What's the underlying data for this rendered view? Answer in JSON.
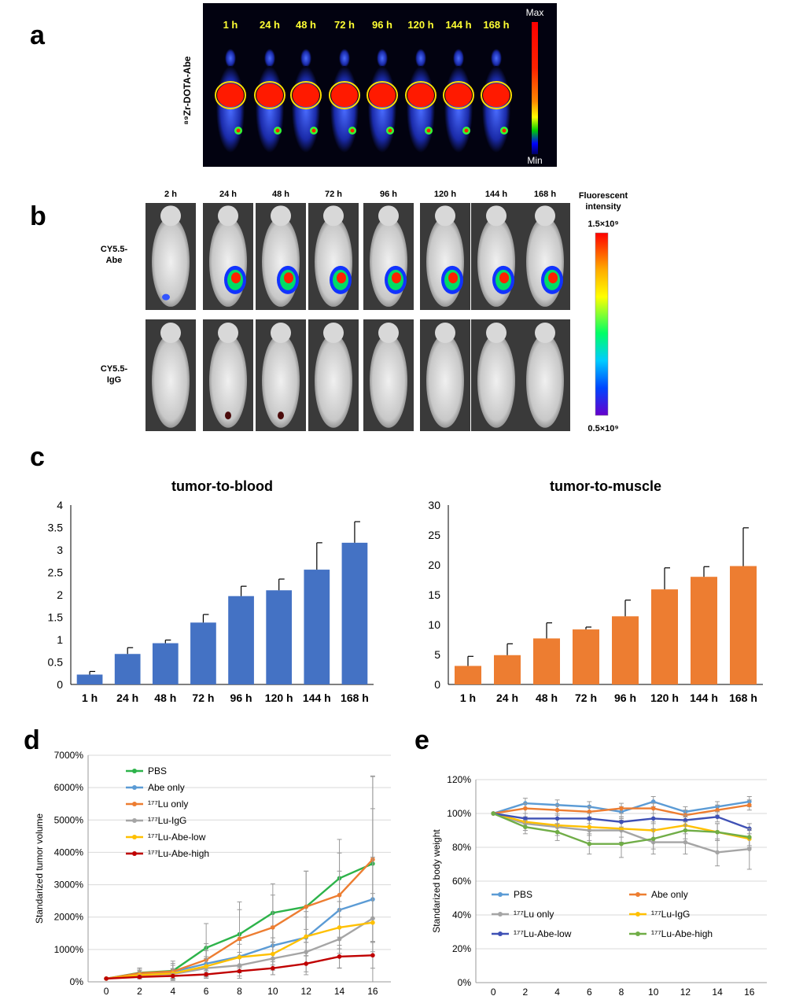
{
  "panels": {
    "a": "a",
    "b": "b",
    "c": "c",
    "d": "d",
    "e": "e"
  },
  "panel_a": {
    "side_label": "⁸⁹Zr-DOTA-Abe",
    "times": [
      "1 h",
      "24 h",
      "48 h",
      "72 h",
      "96 h",
      "120 h",
      "144 h",
      "168 h"
    ],
    "scale_max": "Max",
    "scale_min": "Min"
  },
  "panel_b": {
    "times": [
      "2 h",
      "24 h",
      "48 h",
      "72 h",
      "96 h",
      "120 h",
      "144 h",
      "168 h"
    ],
    "row1_label": [
      "CY5.5-",
      "Abe"
    ],
    "row2_label": [
      "CY5.5-",
      "IgG"
    ],
    "scale_title": [
      "Fluorescent",
      "intensity"
    ],
    "scale_max": "1.5×10⁹",
    "scale_min": "0.5×10⁹"
  },
  "chart_data": [
    {
      "id": "c-left",
      "type": "bar",
      "title": "tumor-to-blood",
      "categories": [
        "1 h",
        "24 h",
        "48 h",
        "72 h",
        "96 h",
        "120 h",
        "144 h",
        "168 h"
      ],
      "values": [
        0.22,
        0.68,
        0.92,
        1.38,
        1.97,
        2.1,
        2.56,
        3.16
      ],
      "errors": [
        0.07,
        0.14,
        0.07,
        0.18,
        0.22,
        0.25,
        0.6,
        0.47
      ],
      "ylim": [
        0,
        4
      ],
      "yticks": [
        "0",
        "0.5",
        "1",
        "1.5",
        "2",
        "2.5",
        "3",
        "3.5",
        "4"
      ],
      "color": "#4472C4"
    },
    {
      "id": "c-right",
      "type": "bar",
      "title": "tumor-to-muscle",
      "categories": [
        "1 h",
        "24 h",
        "48 h",
        "72 h",
        "96 h",
        "120 h",
        "144 h",
        "168 h"
      ],
      "values": [
        3.1,
        4.9,
        7.7,
        9.2,
        11.4,
        15.9,
        18.0,
        19.8
      ],
      "errors": [
        1.6,
        1.9,
        2.6,
        0.4,
        2.7,
        3.6,
        1.7,
        6.4
      ],
      "ylim": [
        0,
        30
      ],
      "yticks": [
        "0",
        "5",
        "10",
        "15",
        "20",
        "25",
        "30"
      ],
      "color": "#ED7D31"
    },
    {
      "id": "d",
      "type": "line",
      "ylabel": "Standarized tumor volume",
      "x": [
        0,
        2,
        4,
        6,
        8,
        10,
        12,
        14,
        16
      ],
      "ylim": [
        0,
        7000
      ],
      "yticks": [
        "0%",
        "1000%",
        "2000%",
        "3000%",
        "4000%",
        "5000%",
        "6000%",
        "7000%"
      ],
      "legend_position": "top-left",
      "series": [
        {
          "name": "PBS",
          "color": "#2DB34A",
          "values": [
            100,
            280,
            340,
            1050,
            1470,
            2130,
            2320,
            3200,
            3650
          ],
          "errors": [
            0,
            150,
            300,
            750,
            1000,
            900,
            1100,
            1200,
            1700
          ]
        },
        {
          "name": "Abe only",
          "color": "#5B9BD5",
          "values": [
            100,
            250,
            310,
            560,
            780,
            1120,
            1370,
            2220,
            2550
          ],
          "errors": [
            0,
            100,
            200,
            400,
            500,
            600,
            800,
            1200,
            1300
          ]
        },
        {
          "name": "¹⁷⁷Lu only",
          "color": "#ED7D31",
          "values": [
            100,
            270,
            320,
            680,
            1330,
            1680,
            2320,
            2680,
            3780
          ],
          "errors": [
            0,
            120,
            250,
            500,
            900,
            1000,
            1100,
            1300,
            2560
          ]
        },
        {
          "name": "¹⁷⁷Lu-IgG",
          "color": "#A5A5A5",
          "values": [
            100,
            200,
            240,
            420,
            510,
            720,
            920,
            1320,
            1960
          ],
          "errors": [
            0,
            100,
            150,
            300,
            400,
            500,
            700,
            900,
            4400
          ]
        },
        {
          "name": "¹⁷⁷Lu-Abe-low",
          "color": "#FFC000",
          "values": [
            100,
            210,
            260,
            480,
            760,
            860,
            1400,
            1680,
            1830
          ],
          "errors": [
            0,
            100,
            150,
            300,
            400,
            500,
            600,
            800,
            900
          ]
        },
        {
          "name": "¹⁷⁷Lu-Abe-high",
          "color": "#C00000",
          "values": [
            100,
            150,
            180,
            230,
            330,
            420,
            560,
            780,
            820
          ],
          "errors": [
            0,
            60,
            80,
            120,
            150,
            200,
            250,
            350,
            400
          ]
        }
      ]
    },
    {
      "id": "e",
      "type": "line",
      "ylabel": "Standarized body weight",
      "x": [
        0,
        2,
        4,
        6,
        8,
        10,
        12,
        14,
        16
      ],
      "ylim": [
        0,
        120
      ],
      "yticks": [
        "0%",
        "20%",
        "40%",
        "60%",
        "80%",
        "100%",
        "120%"
      ],
      "legend_position": "bottom",
      "series": [
        {
          "name": "PBS",
          "color": "#5B9BD5",
          "values": [
            100,
            106,
            105,
            104,
            101,
            107,
            101,
            104,
            107
          ],
          "errors": [
            0,
            3,
            3,
            3,
            3,
            3,
            3,
            3,
            3
          ]
        },
        {
          "name": "Abe only",
          "color": "#ED7D31",
          "values": [
            100,
            103,
            102,
            101,
            103,
            103,
            99,
            102,
            105
          ],
          "errors": [
            0,
            3,
            3,
            3,
            3,
            3,
            3,
            3,
            3
          ]
        },
        {
          "name": "¹⁷⁷Lu only",
          "color": "#A5A5A5",
          "values": [
            100,
            94,
            92,
            90,
            90,
            83,
            83,
            77,
            79
          ],
          "errors": [
            0,
            4,
            5,
            6,
            7,
            7,
            7,
            8,
            12
          ]
        },
        {
          "name": "¹⁷⁷Lu-IgG",
          "color": "#FFC000",
          "values": [
            100,
            95,
            93,
            92,
            91,
            90,
            93,
            89,
            85
          ],
          "errors": [
            0,
            3,
            4,
            5,
            5,
            5,
            5,
            5,
            5
          ]
        },
        {
          "name": "¹⁷⁷Lu-Abe-low",
          "color": "#3F51B5",
          "values": [
            100,
            97,
            97,
            97,
            95,
            97,
            96,
            98,
            91
          ],
          "errors": [
            0,
            3,
            3,
            3,
            3,
            3,
            3,
            3,
            3
          ]
        },
        {
          "name": "¹⁷⁷Lu-Abe-high",
          "color": "#70AD47",
          "values": [
            100,
            92,
            89,
            82,
            82,
            85,
            90,
            89,
            86
          ],
          "errors": [
            0,
            4,
            5,
            6,
            8,
            6,
            5,
            5,
            5
          ]
        }
      ]
    }
  ]
}
